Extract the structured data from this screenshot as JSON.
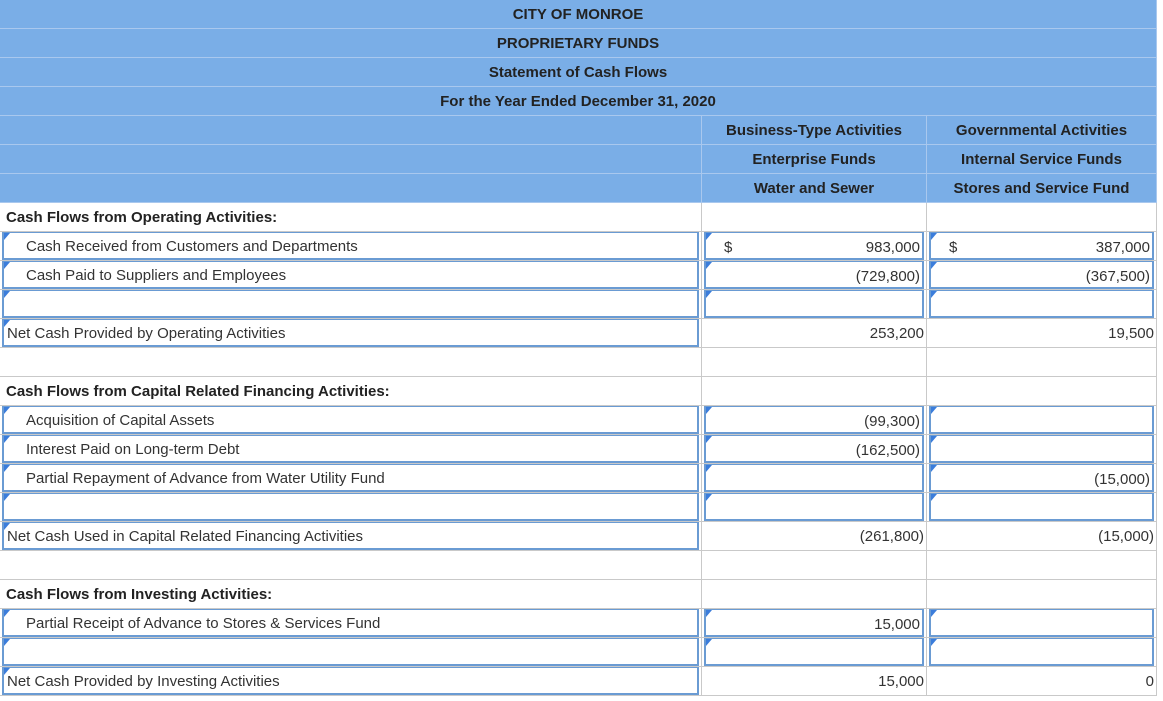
{
  "header": {
    "lines": [
      "CITY OF MONROE",
      "PROPRIETARY FUNDS",
      "Statement of Cash Flows",
      "For the Year Ended December 31, 2020"
    ],
    "columns": [
      [
        "Business-Type Activities",
        "Enterprise Funds",
        "Water and Sewer"
      ],
      [
        "Governmental Activities",
        "Internal Service Funds",
        "Stores and Service Fund"
      ]
    ]
  },
  "sections": [
    {
      "heading": "Cash Flows from Operating Activities:",
      "lines": [
        {
          "label": "Cash Received from Customers and Departments",
          "symbols": [
            "$",
            "$"
          ],
          "amounts": [
            "983,000",
            "387,000"
          ]
        },
        {
          "label": "Cash Paid to Suppliers and Employees",
          "amounts": [
            "(729,800)",
            "(367,500)"
          ]
        }
      ],
      "total": {
        "label": "Net Cash Provided by Operating Activities",
        "amounts": [
          "253,200",
          "19,500"
        ]
      }
    },
    {
      "heading": "Cash Flows from Capital Related Financing Activities:",
      "lines": [
        {
          "label": "Acquisition of Capital Assets",
          "amounts": [
            "(99,300)",
            null
          ]
        },
        {
          "label": "Interest Paid on Long-term Debt",
          "amounts": [
            "(162,500)",
            null
          ]
        },
        {
          "label": "Partial Repayment of Advance from Water Utility Fund",
          "amounts": [
            null,
            "(15,000)"
          ]
        }
      ],
      "total": {
        "label": "Net Cash Used in Capital Related Financing Activities",
        "amounts": [
          "(261,800)",
          "(15,000)"
        ]
      }
    },
    {
      "heading": "Cash Flows from Investing Activities:",
      "lines": [
        {
          "label": "Partial Receipt of Advance to Stores & Services Fund",
          "amounts": [
            "15,000",
            null
          ]
        }
      ],
      "total": {
        "label": "Net Cash Provided by Investing Activities",
        "amounts": [
          "15,000",
          "0"
        ]
      }
    }
  ]
}
